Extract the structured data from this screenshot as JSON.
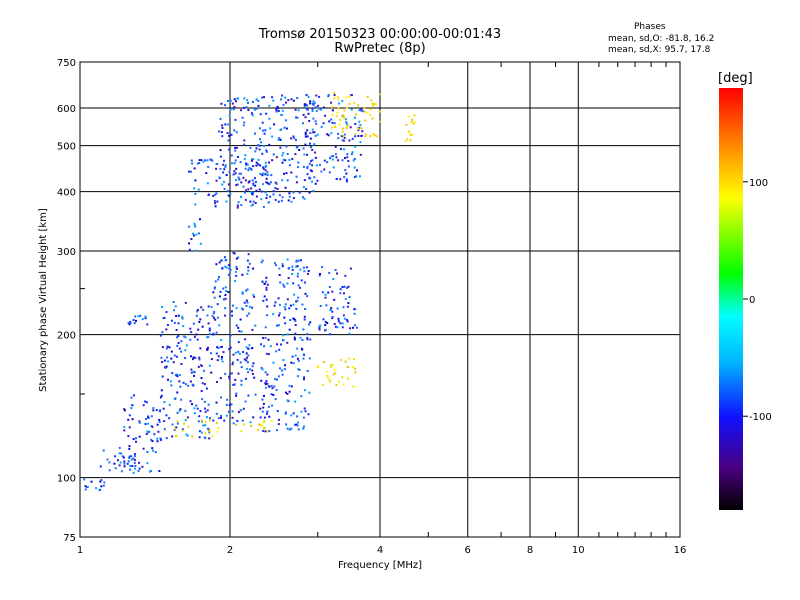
{
  "header": {
    "title_line1": "Tromsø 20150323 00:00:00-00:01:43",
    "title_line2": "RwPretec (8p)",
    "info_title": "Phases",
    "info_line1": "mean, sd,O: -81.8, 16.2",
    "info_line2": "mean, sd,X:  95.7, 17.8"
  },
  "chart_data": {
    "type": "scatter",
    "title": "Tromsø 20150323 00:00:00-00:01:43",
    "subtitle": "RwPretec (8p)",
    "xlabel": "Frequency [MHz]",
    "ylabel": "Stationary phase Virtual Height [km]",
    "x_scale": "log",
    "y_scale": "log",
    "xlim": [
      1,
      16
    ],
    "ylim": [
      75,
      750
    ],
    "x_ticks": [
      "1",
      "2",
      "4",
      "6",
      "8",
      "10",
      "16"
    ],
    "x_tick_values": [
      1,
      2,
      4,
      6,
      8,
      10,
      16
    ],
    "y_ticks": [
      "75",
      "100",
      "200",
      "300",
      "400",
      "500",
      "600",
      "750"
    ],
    "y_tick_values": [
      75,
      100,
      200,
      300,
      400,
      500,
      600,
      750
    ],
    "grid": true,
    "colorbar": {
      "label": "[deg]",
      "range": [
        -180,
        180
      ],
      "ticks": [
        "100",
        "0",
        "-100"
      ],
      "tick_values": [
        100,
        0,
        -100
      ]
    },
    "series": [
      {
        "name": "O",
        "color": "#1560ff",
        "phase": -81.8,
        "clusters": [
          {
            "x": [
              1.0,
              1.12
            ],
            "y": [
              93,
              100
            ]
          },
          {
            "x": [
              1.1,
              1.3
            ],
            "y": [
              102,
              115
            ]
          },
          {
            "x": [
              1.2,
              1.45
            ],
            "y": [
              102,
              150
            ]
          },
          {
            "x": [
              1.25,
              1.4
            ],
            "y": [
              210,
              220
            ]
          },
          {
            "x": [
              1.45,
              1.85
            ],
            "y": [
              120,
              235
            ]
          },
          {
            "x": [
              1.65,
              1.75
            ],
            "y": [
              300,
              360
            ]
          },
          {
            "x": [
              1.85,
              2.25
            ],
            "y": [
              130,
              300
            ]
          },
          {
            "x": [
              2.3,
              2.9
            ],
            "y": [
              125,
              290
            ]
          },
          {
            "x": [
              1.65,
              2.4
            ],
            "y": [
              370,
              470
            ]
          },
          {
            "x": [
              1.9,
              3.0
            ],
            "y": [
              380,
              640
            ]
          },
          {
            "x": [
              2.8,
              3.7
            ],
            "y": [
              420,
              640
            ]
          },
          {
            "x": [
              3.0,
              3.6
            ],
            "y": [
              200,
              280
            ]
          }
        ]
      },
      {
        "name": "X",
        "color": "#f5e000",
        "phase": 95.7,
        "clusters": [
          {
            "x": [
              1.55,
              1.9
            ],
            "y": [
              122,
              132
            ]
          },
          {
            "x": [
              2.0,
              2.5
            ],
            "y": [
              125,
              132
            ]
          },
          {
            "x": [
              3.0,
              3.6
            ],
            "y": [
              155,
              180
            ]
          },
          {
            "x": [
              3.2,
              4.0
            ],
            "y": [
              520,
              650
            ]
          },
          {
            "x": [
              4.5,
              4.7
            ],
            "y": [
              510,
              580
            ]
          }
        ]
      }
    ]
  }
}
